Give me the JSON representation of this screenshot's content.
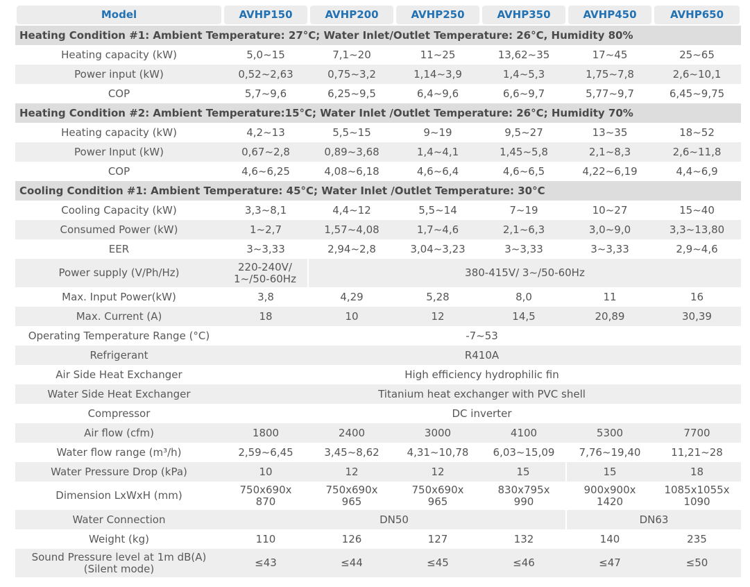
{
  "header": {
    "model_label": "Model",
    "models": [
      "AVHP150",
      "AVHP200",
      "AVHP250",
      "AVHP350",
      "AVHP450",
      "AVHP650"
    ]
  },
  "sections": {
    "heating1": {
      "title": "Heating Condition #1: Ambient Temperature: 27°C; Water Inlet/Outlet Temperature: 26°C, Humidity 80%",
      "rows": [
        {
          "label": "Heating capacity (kW)",
          "values": [
            "5,0~15",
            "7,1~20",
            "11~25",
            "13,62~35",
            "17~45",
            "25~65"
          ]
        },
        {
          "label": "Power input (kW)",
          "values": [
            "0,52~2,63",
            "0,75~3,2",
            "1,14~3,9",
            "1,4~5,3",
            "1,75~7,8",
            "2,6~10,1"
          ]
        },
        {
          "label": "COP",
          "values": [
            "5,7~9,6",
            "6,25~9,5",
            "6,4~9,6",
            "6,6~9,7",
            "5,77~9,7",
            "6,45~9,75"
          ]
        }
      ]
    },
    "heating2": {
      "title": "Heating Condition #2: Ambient Temperature:15°C; Water Inlet /Outlet Temperature: 26°C; Humidity 70%",
      "rows": [
        {
          "label": "Heating capacity (kW)",
          "values": [
            "4,2~13",
            "5,5~15",
            "9~19",
            "9,5~27",
            "13~35",
            "18~52"
          ]
        },
        {
          "label": "Power Input (kW)",
          "values": [
            "0,67~2,8",
            "0,89~3,68",
            "1,4~4,1",
            "1,45~5,8",
            "2,1~8,3",
            "2,6~11,8"
          ]
        },
        {
          "label": "COP",
          "values": [
            "4,6~6,25",
            "4,08~6,18",
            "4,6~6,4",
            "4,6~6,5",
            "4,22~6,19",
            "4,4~6,9"
          ]
        }
      ]
    },
    "cooling1": {
      "title": "Cooling Condition #1: Ambient Temperature: 45°C; Water Inlet /Outlet Temperature: 30°C",
      "rows": [
        {
          "label": "Cooling Capacity (kW)",
          "values": [
            "3,3~8,1",
            "4,4~12",
            "5,5~14",
            "7~19",
            "10~27",
            "15~40"
          ]
        },
        {
          "label": "Consumed Power (kW)",
          "values": [
            "1~2,7",
            "1,57~4,08",
            "1,7~4,6",
            "2,1~6,3",
            "3,0~9,0",
            "3,3~13,80"
          ]
        },
        {
          "label": "EER",
          "values": [
            "3~3,33",
            "2,94~2,8",
            "3,04~3,23",
            "3~3,33",
            "3~3,33",
            "2,9~4,6"
          ]
        }
      ]
    }
  },
  "specs": {
    "power_supply": {
      "label": "Power supply (V/Ph/Hz)",
      "first": "220-240V/\n1~/50-60Hz",
      "rest": "380-415V/ 3~/50-60Hz"
    },
    "max_input_power": {
      "label": "Max. Input Power(kW)",
      "values": [
        "3,8",
        "4,29",
        "5,28",
        "8,0",
        "11",
        "16"
      ]
    },
    "max_current": {
      "label": "Max. Current (A)",
      "values": [
        "18",
        "10",
        "12",
        "14,5",
        "20,89",
        "30,39"
      ]
    },
    "operating_range": {
      "label": "Operating Temperature Range (°C)",
      "value": "-7~53"
    },
    "refrigerant": {
      "label": "Refrigerant",
      "value": "R410A"
    },
    "air_exchanger": {
      "label": "Air Side Heat Exchanger",
      "value": "High efficiency hydrophilic fin"
    },
    "water_exchanger": {
      "label": "Water Side Heat Exchanger",
      "value": "Titanium heat exchanger with PVC shell"
    },
    "compressor": {
      "label": "Compressor",
      "value": "DC inverter"
    },
    "air_flow": {
      "label": "Air flow (cfm)",
      "values": [
        "1800",
        "2400",
        "3000",
        "4100",
        "5300",
        "7700"
      ]
    },
    "water_flow": {
      "label": "Water flow range (m³/h)",
      "values": [
        "2,59~6,45",
        "3,45~8,62",
        "4,31~10,78",
        "6,03~15,09",
        "7,76~19,40",
        "11,21~28"
      ]
    },
    "pressure_drop": {
      "label": "Water Pressure Drop (kPa)",
      "values": [
        "10",
        "12",
        "12",
        "15",
        "15",
        "18"
      ]
    },
    "dimension": {
      "label": "Dimension LxWxH (mm)",
      "values": [
        "750x690x\n870",
        "750x690x\n965",
        "750x690x\n965",
        "830x795x\n990",
        "900x900x\n1420",
        "1085x1055x\n1090"
      ]
    },
    "water_connection": {
      "label": "Water Connection",
      "small": "DN50",
      "large": "DN63"
    },
    "weight": {
      "label": "Weight (kg)",
      "values": [
        "110",
        "126",
        "127",
        "132",
        "140",
        "235"
      ]
    },
    "sound": {
      "label": "Sound Pressure level at 1m dB(A)\n(Silent mode)",
      "values": [
        "≤43",
        "≤44",
        "≤45",
        "≤46",
        "≤47",
        "≤50"
      ]
    }
  }
}
